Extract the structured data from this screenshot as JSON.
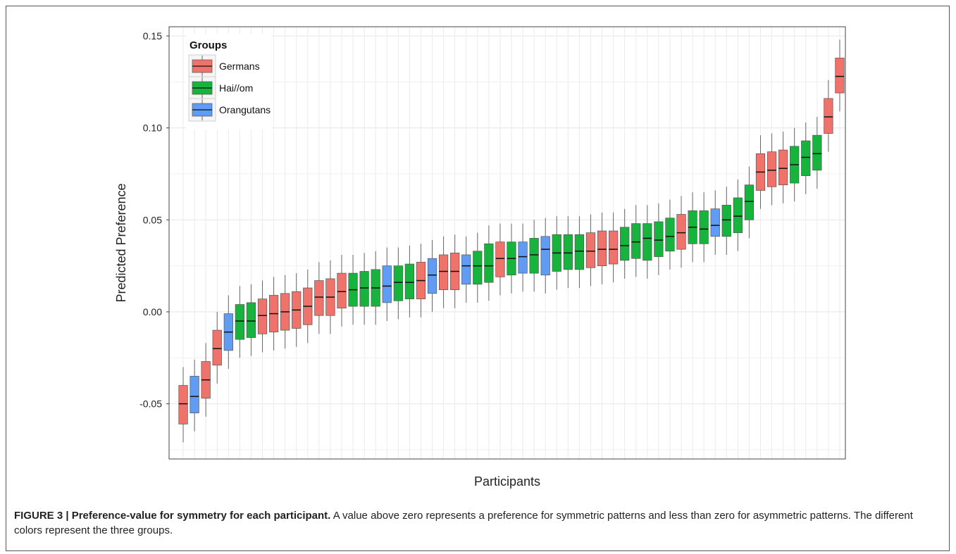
{
  "caption": {
    "label": "FIGURE 3 | Preference-value for symmetry for each participant.",
    "text": " A value above zero represents a preference for symmetric patterns and less than zero for asymmetric patterns. The different colors represent the three groups."
  },
  "colors": {
    "Germans": "#F0736B",
    "Hai//om": "#16B43C",
    "Orangutans": "#609CF4"
  },
  "chart_data": {
    "type": "box",
    "xlabel": "Participants",
    "ylabel": "Predicted Preference",
    "ylim": [
      -0.08,
      0.155
    ],
    "yticks": [
      -0.05,
      0.0,
      0.05,
      0.1,
      0.15
    ],
    "ytick_labels": [
      "-0.05",
      "0.00",
      "0.05",
      "0.10",
      "0.15"
    ],
    "grid": true,
    "legend": {
      "title": "Groups",
      "position": "top-left",
      "entries": [
        "Germans",
        "Hai//om",
        "Orangutans"
      ]
    },
    "boxes": [
      {
        "group": "Germans",
        "q1": -0.061,
        "median": -0.05,
        "q3": -0.04,
        "min": -0.071,
        "max": -0.03
      },
      {
        "group": "Orangutans",
        "q1": -0.055,
        "median": -0.046,
        "q3": -0.035,
        "min": -0.065,
        "max": -0.026
      },
      {
        "group": "Germans",
        "q1": -0.047,
        "median": -0.037,
        "q3": -0.027,
        "min": -0.057,
        "max": -0.017
      },
      {
        "group": "Germans",
        "q1": -0.029,
        "median": -0.02,
        "q3": -0.01,
        "min": -0.039,
        "max": 0.0
      },
      {
        "group": "Orangutans",
        "q1": -0.021,
        "median": -0.011,
        "q3": -0.001,
        "min": -0.031,
        "max": 0.009
      },
      {
        "group": "Hai//om",
        "q1": -0.015,
        "median": -0.005,
        "q3": 0.004,
        "min": -0.025,
        "max": 0.014
      },
      {
        "group": "Hai//om",
        "q1": -0.014,
        "median": -0.005,
        "q3": 0.005,
        "min": -0.024,
        "max": 0.015
      },
      {
        "group": "Germans",
        "q1": -0.012,
        "median": -0.002,
        "q3": 0.007,
        "min": -0.022,
        "max": 0.017
      },
      {
        "group": "Germans",
        "q1": -0.011,
        "median": -0.001,
        "q3": 0.009,
        "min": -0.021,
        "max": 0.019
      },
      {
        "group": "Germans",
        "q1": -0.01,
        "median": 0.0,
        "q3": 0.01,
        "min": -0.02,
        "max": 0.02
      },
      {
        "group": "Germans",
        "q1": -0.009,
        "median": 0.001,
        "q3": 0.011,
        "min": -0.019,
        "max": 0.021
      },
      {
        "group": "Germans",
        "q1": -0.007,
        "median": 0.003,
        "q3": 0.013,
        "min": -0.017,
        "max": 0.023
      },
      {
        "group": "Germans",
        "q1": -0.002,
        "median": 0.008,
        "q3": 0.017,
        "min": -0.012,
        "max": 0.027
      },
      {
        "group": "Germans",
        "q1": -0.002,
        "median": 0.008,
        "q3": 0.018,
        "min": -0.012,
        "max": 0.028
      },
      {
        "group": "Germans",
        "q1": 0.002,
        "median": 0.011,
        "q3": 0.021,
        "min": -0.008,
        "max": 0.031
      },
      {
        "group": "Hai//om",
        "q1": 0.003,
        "median": 0.012,
        "q3": 0.021,
        "min": -0.007,
        "max": 0.031
      },
      {
        "group": "Hai//om",
        "q1": 0.003,
        "median": 0.013,
        "q3": 0.022,
        "min": -0.007,
        "max": 0.032
      },
      {
        "group": "Hai//om",
        "q1": 0.003,
        "median": 0.013,
        "q3": 0.023,
        "min": -0.007,
        "max": 0.033
      },
      {
        "group": "Orangutans",
        "q1": 0.005,
        "median": 0.014,
        "q3": 0.025,
        "min": -0.005,
        "max": 0.035
      },
      {
        "group": "Hai//om",
        "q1": 0.006,
        "median": 0.016,
        "q3": 0.025,
        "min": -0.004,
        "max": 0.035
      },
      {
        "group": "Hai//om",
        "q1": 0.007,
        "median": 0.016,
        "q3": 0.026,
        "min": -0.003,
        "max": 0.036
      },
      {
        "group": "Germans",
        "q1": 0.007,
        "median": 0.017,
        "q3": 0.027,
        "min": -0.003,
        "max": 0.037
      },
      {
        "group": "Orangutans",
        "q1": 0.01,
        "median": 0.02,
        "q3": 0.029,
        "min": 0.0,
        "max": 0.039
      },
      {
        "group": "Germans",
        "q1": 0.012,
        "median": 0.022,
        "q3": 0.031,
        "min": 0.002,
        "max": 0.041
      },
      {
        "group": "Germans",
        "q1": 0.012,
        "median": 0.022,
        "q3": 0.032,
        "min": 0.002,
        "max": 0.042
      },
      {
        "group": "Orangutans",
        "q1": 0.015,
        "median": 0.025,
        "q3": 0.031,
        "min": 0.005,
        "max": 0.041
      },
      {
        "group": "Hai//om",
        "q1": 0.015,
        "median": 0.025,
        "q3": 0.033,
        "min": 0.005,
        "max": 0.043
      },
      {
        "group": "Hai//om",
        "q1": 0.016,
        "median": 0.025,
        "q3": 0.037,
        "min": 0.006,
        "max": 0.047
      },
      {
        "group": "Germans",
        "q1": 0.019,
        "median": 0.029,
        "q3": 0.038,
        "min": 0.009,
        "max": 0.048
      },
      {
        "group": "Hai//om",
        "q1": 0.02,
        "median": 0.029,
        "q3": 0.038,
        "min": 0.01,
        "max": 0.048
      },
      {
        "group": "Orangutans",
        "q1": 0.021,
        "median": 0.03,
        "q3": 0.038,
        "min": 0.011,
        "max": 0.048
      },
      {
        "group": "Hai//om",
        "q1": 0.021,
        "median": 0.031,
        "q3": 0.04,
        "min": 0.011,
        "max": 0.05
      },
      {
        "group": "Orangutans",
        "q1": 0.02,
        "median": 0.034,
        "q3": 0.041,
        "min": 0.01,
        "max": 0.051
      },
      {
        "group": "Hai//om",
        "q1": 0.022,
        "median": 0.032,
        "q3": 0.042,
        "min": 0.012,
        "max": 0.052
      },
      {
        "group": "Hai//om",
        "q1": 0.023,
        "median": 0.032,
        "q3": 0.042,
        "min": 0.013,
        "max": 0.052
      },
      {
        "group": "Hai//om",
        "q1": 0.023,
        "median": 0.033,
        "q3": 0.042,
        "min": 0.013,
        "max": 0.052
      },
      {
        "group": "Germans",
        "q1": 0.024,
        "median": 0.033,
        "q3": 0.043,
        "min": 0.014,
        "max": 0.053
      },
      {
        "group": "Germans",
        "q1": 0.025,
        "median": 0.034,
        "q3": 0.044,
        "min": 0.015,
        "max": 0.054
      },
      {
        "group": "Germans",
        "q1": 0.026,
        "median": 0.034,
        "q3": 0.044,
        "min": 0.016,
        "max": 0.054
      },
      {
        "group": "Hai//om",
        "q1": 0.028,
        "median": 0.036,
        "q3": 0.046,
        "min": 0.018,
        "max": 0.056
      },
      {
        "group": "Hai//om",
        "q1": 0.029,
        "median": 0.038,
        "q3": 0.048,
        "min": 0.019,
        "max": 0.058
      },
      {
        "group": "Hai//om",
        "q1": 0.028,
        "median": 0.04,
        "q3": 0.048,
        "min": 0.018,
        "max": 0.058
      },
      {
        "group": "Hai//om",
        "q1": 0.03,
        "median": 0.039,
        "q3": 0.049,
        "min": 0.02,
        "max": 0.059
      },
      {
        "group": "Hai//om",
        "q1": 0.033,
        "median": 0.041,
        "q3": 0.051,
        "min": 0.023,
        "max": 0.061
      },
      {
        "group": "Germans",
        "q1": 0.034,
        "median": 0.043,
        "q3": 0.053,
        "min": 0.024,
        "max": 0.063
      },
      {
        "group": "Hai//om",
        "q1": 0.037,
        "median": 0.046,
        "q3": 0.055,
        "min": 0.027,
        "max": 0.065
      },
      {
        "group": "Hai//om",
        "q1": 0.037,
        "median": 0.045,
        "q3": 0.055,
        "min": 0.027,
        "max": 0.065
      },
      {
        "group": "Orangutans",
        "q1": 0.041,
        "median": 0.047,
        "q3": 0.056,
        "min": 0.031,
        "max": 0.066
      },
      {
        "group": "Hai//om",
        "q1": 0.041,
        "median": 0.05,
        "q3": 0.058,
        "min": 0.031,
        "max": 0.068
      },
      {
        "group": "Hai//om",
        "q1": 0.043,
        "median": 0.052,
        "q3": 0.062,
        "min": 0.033,
        "max": 0.072
      },
      {
        "group": "Hai//om",
        "q1": 0.05,
        "median": 0.06,
        "q3": 0.069,
        "min": 0.04,
        "max": 0.079
      },
      {
        "group": "Germans",
        "q1": 0.066,
        "median": 0.076,
        "q3": 0.086,
        "min": 0.056,
        "max": 0.096
      },
      {
        "group": "Germans",
        "q1": 0.068,
        "median": 0.077,
        "q3": 0.087,
        "min": 0.058,
        "max": 0.097
      },
      {
        "group": "Germans",
        "q1": 0.069,
        "median": 0.078,
        "q3": 0.088,
        "min": 0.059,
        "max": 0.098
      },
      {
        "group": "Hai//om",
        "q1": 0.07,
        "median": 0.08,
        "q3": 0.09,
        "min": 0.06,
        "max": 0.1
      },
      {
        "group": "Hai//om",
        "q1": 0.074,
        "median": 0.084,
        "q3": 0.093,
        "min": 0.064,
        "max": 0.103
      },
      {
        "group": "Hai//om",
        "q1": 0.077,
        "median": 0.086,
        "q3": 0.096,
        "min": 0.067,
        "max": 0.106
      },
      {
        "group": "Germans",
        "q1": 0.097,
        "median": 0.106,
        "q3": 0.116,
        "min": 0.087,
        "max": 0.126
      },
      {
        "group": "Germans",
        "q1": 0.119,
        "median": 0.128,
        "q3": 0.138,
        "min": 0.109,
        "max": 0.148
      }
    ]
  }
}
